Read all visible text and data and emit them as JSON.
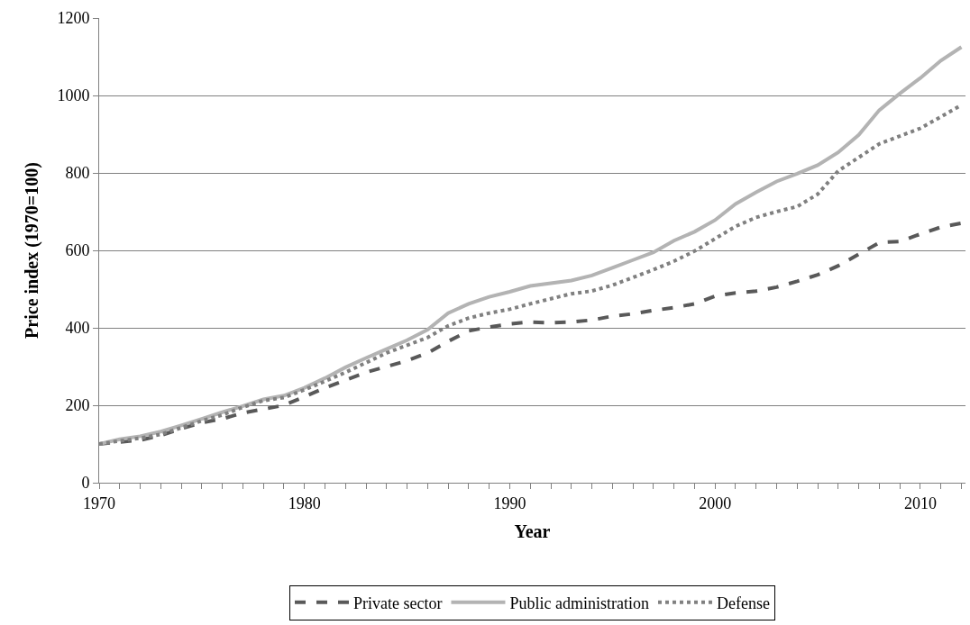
{
  "chart_data": {
    "type": "line",
    "xlabel": "Year",
    "ylabel": "Price index (1970=100)",
    "x": [
      1970,
      1971,
      1972,
      1973,
      1974,
      1975,
      1976,
      1977,
      1978,
      1979,
      1980,
      1981,
      1982,
      1983,
      1984,
      1985,
      1986,
      1987,
      1988,
      1989,
      1990,
      1991,
      1992,
      1993,
      1994,
      1995,
      1996,
      1997,
      1998,
      1999,
      2000,
      2001,
      2002,
      2003,
      2004,
      2005,
      2006,
      2007,
      2008,
      2009,
      2010,
      2011,
      2012
    ],
    "series": [
      {
        "name": "Private sector",
        "color": "#595959",
        "line_style": "dashed",
        "values": [
          100,
          105,
          110,
          122,
          140,
          155,
          165,
          180,
          190,
          200,
          222,
          245,
          265,
          285,
          300,
          315,
          335,
          365,
          392,
          402,
          410,
          415,
          413,
          415,
          420,
          430,
          436,
          445,
          452,
          462,
          482,
          490,
          495,
          505,
          520,
          537,
          560,
          590,
          620,
          623,
          642,
          660,
          670
        ]
      },
      {
        "name": "Public administration",
        "color": "#b3b3b3",
        "line_style": "solid",
        "values": [
          100,
          112,
          120,
          132,
          148,
          165,
          182,
          198,
          215,
          225,
          245,
          270,
          298,
          322,
          345,
          368,
          395,
          438,
          462,
          480,
          493,
          508,
          515,
          522,
          535,
          555,
          575,
          595,
          625,
          648,
          678,
          720,
          750,
          778,
          798,
          820,
          853,
          898,
          962,
          1005,
          1045,
          1090,
          1125
        ]
      },
      {
        "name": "Defense",
        "color": "#808080",
        "line_style": "dotted",
        "values": [
          100,
          108,
          115,
          125,
          142,
          160,
          175,
          195,
          212,
          220,
          240,
          262,
          285,
          310,
          335,
          355,
          375,
          405,
          425,
          438,
          448,
          462,
          475,
          488,
          495,
          510,
          530,
          550,
          572,
          598,
          630,
          662,
          685,
          700,
          713,
          745,
          805,
          840,
          875,
          895,
          915,
          945,
          975
        ]
      }
    ],
    "xlim": [
      1970,
      2012.2
    ],
    "xticks": [
      1970,
      {
        "value": 1971,
        "label": null
      },
      {
        "value": 1972,
        "label": null
      },
      {
        "value": 1973,
        "label": null
      },
      {
        "value": 1974,
        "label": null
      },
      {
        "value": 1975,
        "label": null
      },
      {
        "value": 1976,
        "label": null
      },
      {
        "value": 1977,
        "label": null
      },
      {
        "value": 1978,
        "label": null
      },
      {
        "value": 1979,
        "label": null
      },
      1980,
      {
        "value": 1981,
        "label": null
      },
      {
        "value": 1982,
        "label": null
      },
      {
        "value": 1983,
        "label": null
      },
      {
        "value": 1984,
        "label": null
      },
      {
        "value": 1985,
        "label": null
      },
      {
        "value": 1986,
        "label": null
      },
      {
        "value": 1987,
        "label": null
      },
      {
        "value": 1988,
        "label": null
      },
      {
        "value": 1989,
        "label": null
      },
      1990,
      {
        "value": 1991,
        "label": null
      },
      {
        "value": 1992,
        "label": null
      },
      {
        "value": 1993,
        "label": null
      },
      {
        "value": 1994,
        "label": null
      },
      {
        "value": 1995,
        "label": null
      },
      {
        "value": 1996,
        "label": null
      },
      {
        "value": 1997,
        "label": null
      },
      {
        "value": 1998,
        "label": null
      },
      {
        "value": 1999,
        "label": null
      },
      2000,
      {
        "value": 2001,
        "label": null
      },
      {
        "value": 2002,
        "label": null
      },
      {
        "value": 2003,
        "label": null
      },
      {
        "value": 2004,
        "label": null
      },
      {
        "value": 2005,
        "label": null
      },
      {
        "value": 2006,
        "label": null
      },
      {
        "value": 2007,
        "label": null
      },
      {
        "value": 2008,
        "label": null
      },
      {
        "value": 2009,
        "label": null
      },
      2010,
      {
        "value": 2011,
        "label": null
      },
      {
        "value": 2012,
        "label": null
      }
    ],
    "ylim": [
      0,
      1200
    ],
    "yticks": [
      0,
      200,
      400,
      600,
      800,
      1000,
      1200
    ],
    "grid": "y",
    "legend": "bottom",
    "marker": "none"
  }
}
